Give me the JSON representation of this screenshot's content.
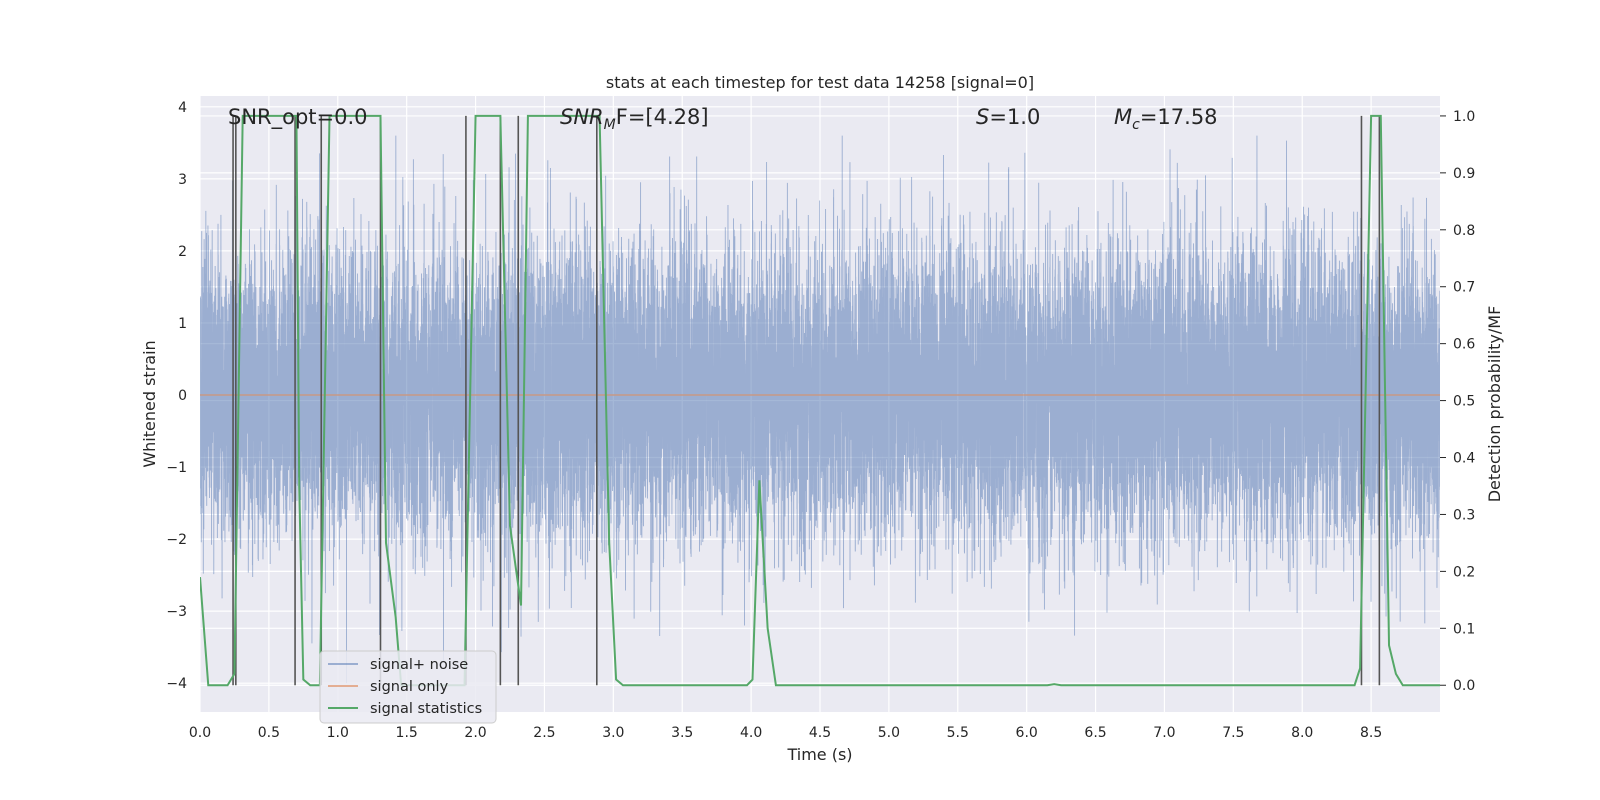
{
  "chart_data": {
    "type": "line",
    "title": "stats at each timestep for test data 14258 [signal=0]",
    "xlabel": "Time (s)",
    "ylabel": "Whitened strain",
    "y2label": "Detection probability/MF",
    "xlim": [
      0,
      9
    ],
    "ylim": [
      -4.4,
      4.15
    ],
    "y2lim": [
      -0.047,
      1.035
    ],
    "x_ticks": [
      0.0,
      0.5,
      1.0,
      1.5,
      2.0,
      2.5,
      3.0,
      3.5,
      4.0,
      4.5,
      5.0,
      5.5,
      6.0,
      6.5,
      7.0,
      7.5,
      8.0,
      8.5
    ],
    "x_tick_labels": [
      "0.0",
      "0.5",
      "1.0",
      "1.5",
      "2.0",
      "2.5",
      "3.0",
      "3.5",
      "4.0",
      "4.5",
      "5.0",
      "5.5",
      "6.0",
      "6.5",
      "7.0",
      "7.5",
      "8.0",
      "8.5"
    ],
    "y_ticks": [
      4,
      3,
      2,
      1,
      0,
      -1,
      -2,
      -3,
      -4
    ],
    "y_tick_labels": [
      "4",
      "3",
      "2",
      "1",
      "0",
      "−1",
      "−2",
      "−3",
      "−4"
    ],
    "y2_ticks": [
      1.0,
      0.9,
      0.8,
      0.7,
      0.6,
      0.5,
      0.4,
      0.3,
      0.2,
      0.1,
      0.0
    ],
    "y2_tick_labels": [
      "1.0",
      "0.9",
      "0.8",
      "0.7",
      "0.6",
      "0.5",
      "0.4",
      "0.3",
      "0.2",
      "0.1",
      "0.0"
    ],
    "annotations": {
      "snr_opt": "SNR_opt=0.0",
      "snr_mf_sym": "SNR",
      "snr_mf_sub": "M",
      "snr_mf_rest": "F=[4.28]",
      "s_sym": "S",
      "s_rest": "=1.0",
      "mc_sym": "M",
      "mc_sub": "c",
      "mc_rest": "=17.58"
    },
    "legend": {
      "position": "lower-left",
      "entries": [
        "signal+ noise",
        "signal only",
        "signal statistics"
      ]
    },
    "series": [
      {
        "name": "signal+ noise",
        "axis": "left",
        "color": "#4c72b0",
        "kind": "noise",
        "sample_rate_hz": 2048,
        "duration_s": 9,
        "std": 1.0,
        "approx_range": [
          -4.0,
          3.6
        ]
      },
      {
        "name": "signal only",
        "axis": "left",
        "color": "#dd8452",
        "x": [
          0,
          9
        ],
        "y": [
          0,
          0
        ]
      },
      {
        "name": "signal statistics",
        "axis": "right",
        "color": "#55a868",
        "x": [
          0.0,
          0.06,
          0.2,
          0.25,
          0.31,
          0.7,
          0.72,
          0.75,
          0.8,
          0.87,
          0.94,
          1.31,
          1.35,
          1.42,
          1.46,
          1.92,
          2.0,
          2.18,
          2.25,
          2.33,
          2.38,
          2.9,
          2.97,
          3.02,
          3.07,
          3.97,
          4.01,
          4.06,
          4.12,
          4.18,
          6.15,
          6.2,
          6.25,
          8.38,
          8.42,
          8.5,
          8.57,
          8.63,
          8.68,
          8.73,
          9.0
        ],
        "y": [
          0.19,
          0.0,
          0.0,
          0.02,
          1.0,
          1.0,
          0.35,
          0.01,
          0.0,
          0.0,
          1.0,
          1.0,
          0.25,
          0.12,
          0.0,
          0.0,
          1.0,
          1.0,
          0.28,
          0.14,
          1.0,
          1.0,
          0.25,
          0.01,
          0.0,
          0.0,
          0.01,
          0.36,
          0.1,
          0.0,
          0.0,
          0.002,
          0.0,
          0.0,
          0.03,
          1.0,
          1.0,
          0.07,
          0.02,
          0.0,
          0.0
        ]
      }
    ],
    "marker_lines": {
      "color": "#555555",
      "x": [
        0.24,
        0.26,
        0.69,
        0.88,
        1.31,
        1.93,
        2.18,
        2.31,
        2.88,
        8.43,
        8.56
      ]
    }
  }
}
